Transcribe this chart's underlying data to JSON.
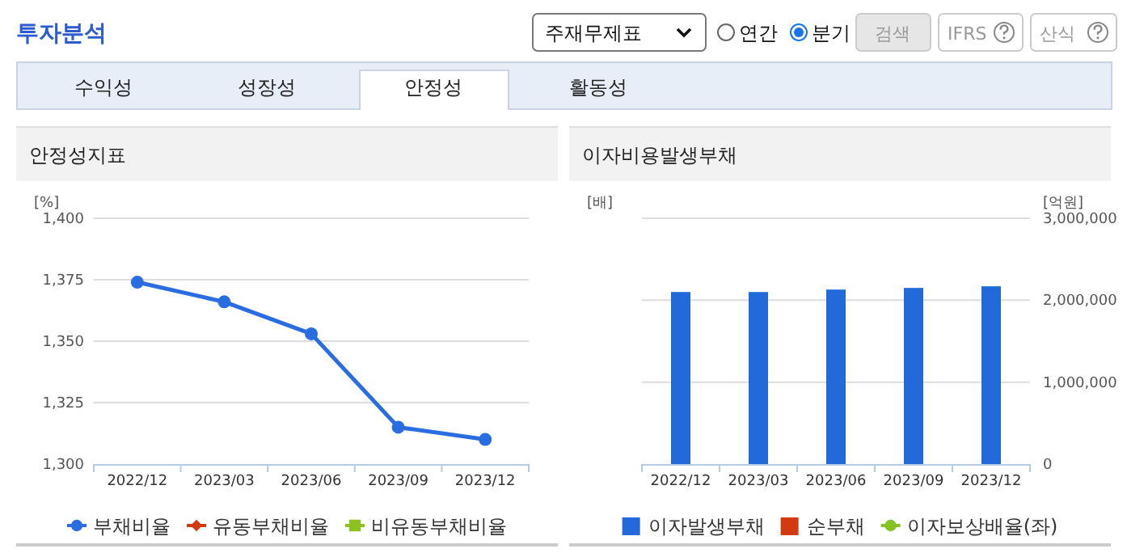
{
  "chart_data": [
    {
      "type": "other",
      "title": "투자분석",
      "annotations": [
        "주재무제표",
        "연간",
        "분기",
        "검색",
        "IFRS",
        "산식",
        "수익성",
        "성장성",
        "안정성",
        "활동성"
      ]
    },
    {
      "type": "line",
      "title": "안정성지표",
      "ylabel": "[%]",
      "categories": [
        "2022/12",
        "2023/03",
        "2023/06",
        "2023/09",
        "2023/12"
      ],
      "series": [
        {
          "name": "부채비율",
          "color": "#2a6de0",
          "marker": "circle",
          "values": [
            1374,
            1366,
            1353,
            1315,
            1310
          ]
        },
        {
          "name": "유동부채비율",
          "color": "#d23a12",
          "marker": "diamond",
          "values": [
            null,
            null,
            null,
            null,
            null
          ]
        },
        {
          "name": "비유동부채비율",
          "color": "#8cc21f",
          "marker": "square",
          "values": [
            null,
            null,
            null,
            null,
            null
          ]
        }
      ],
      "ylim": [
        1300,
        1400
      ],
      "yticks": [
        {
          "value": 1300,
          "label": "1,300"
        },
        {
          "value": 1325,
          "label": "1,325"
        },
        {
          "value": 1350,
          "label": "1,350"
        },
        {
          "value": 1375,
          "label": "1,375"
        },
        {
          "value": 1400,
          "label": "1,400"
        }
      ],
      "grid": "y",
      "legend": "bottom"
    },
    {
      "type": "bar",
      "title": "이자비용발생부채",
      "ylabel": "[배]",
      "y2label": "[억원]",
      "categories": [
        "2022/12",
        "2023/03",
        "2023/06",
        "2023/09",
        "2023/12"
      ],
      "series": [
        {
          "name": "이자발생부채",
          "color": "#2469d9",
          "axis": "y2",
          "values": [
            2100000,
            2100000,
            2130000,
            2150000,
            2170000
          ]
        },
        {
          "name": "순부채",
          "color": "#d43a10",
          "values": [
            null,
            null,
            null,
            null,
            null
          ]
        },
        {
          "name": "이자보상배율(좌)",
          "type": "line",
          "color": "#84c225",
          "marker": "circle",
          "values": [
            null,
            null,
            null,
            null,
            null
          ]
        }
      ],
      "y2lim": [
        0,
        3000000
      ],
      "y2ticks": [
        0,
        {
          "value": 1000000,
          "label": "1,000,000"
        },
        {
          "value": 2000000,
          "label": "2,000,000"
        },
        {
          "value": 3000000,
          "label": "3,000,000"
        }
      ],
      "grid": "y",
      "legend": "bottom"
    }
  ]
}
